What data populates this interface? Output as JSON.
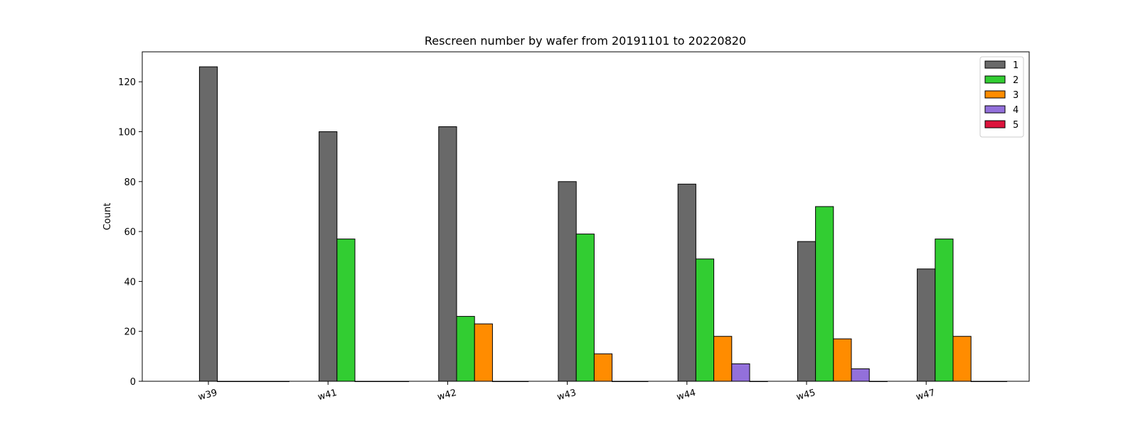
{
  "chart_data": {
    "type": "bar",
    "title": "Rescreen number  by wafer from 20191101 to 20220820",
    "xlabel": "",
    "ylabel": "Count",
    "categories": [
      "w39",
      "w41",
      "w42",
      "w43",
      "w44",
      "w45",
      "w47"
    ],
    "ylim": [
      0,
      132
    ],
    "yticks": [
      0,
      20,
      40,
      60,
      80,
      100,
      120
    ],
    "grid": false,
    "legend_position": "top-right",
    "series": [
      {
        "name": "1",
        "color": "#696969",
        "values": [
          126,
          100,
          102,
          80,
          79,
          56,
          45
        ]
      },
      {
        "name": "2",
        "color": "#32cd32",
        "values": [
          0,
          57,
          26,
          59,
          49,
          70,
          57
        ]
      },
      {
        "name": "3",
        "color": "#ff8c00",
        "values": [
          0,
          0,
          23,
          11,
          18,
          17,
          18
        ]
      },
      {
        "name": "4",
        "color": "#9370db",
        "values": [
          0,
          0,
          0,
          0,
          7,
          5,
          0
        ]
      },
      {
        "name": "5",
        "color": "#dc143c",
        "values": [
          0,
          0,
          0,
          0,
          0,
          0,
          0
        ]
      }
    ]
  }
}
